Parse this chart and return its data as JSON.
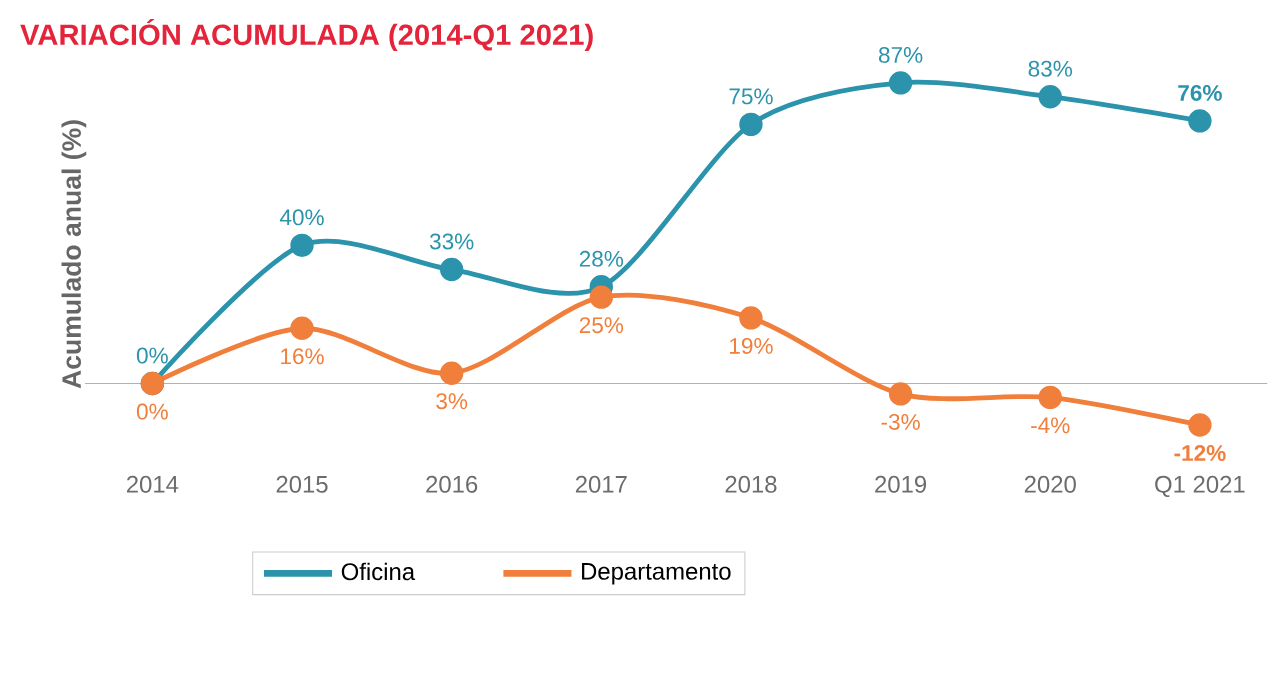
{
  "chart_data": {
    "type": "line",
    "title": "VARIACIÓN ACUMULADA (2014-Q1 2021)",
    "ylabel": "Acumulado anual (%)",
    "categories": [
      "2014",
      "2015",
      "2016",
      "2017",
      "2018",
      "2019",
      "2020",
      "Q1 2021"
    ],
    "series": [
      {
        "name": "Oficina",
        "color": "#2b93ab",
        "values": [
          0,
          40,
          33,
          28,
          75,
          87,
          83,
          76
        ],
        "value_labels": [
          "0%",
          "40%",
          "33%",
          "28%",
          "75%",
          "87%",
          "83%",
          "76%"
        ]
      },
      {
        "name": "Departamento",
        "color": "#f07f3c",
        "values": [
          0,
          16,
          3,
          25,
          19,
          -3,
          -4,
          -12
        ],
        "value_labels": [
          "0%",
          "16%",
          "3%",
          "25%",
          "19%",
          "-3%",
          "-4%",
          "-12%"
        ]
      }
    ],
    "marker": "circle",
    "legend": "bottom"
  }
}
